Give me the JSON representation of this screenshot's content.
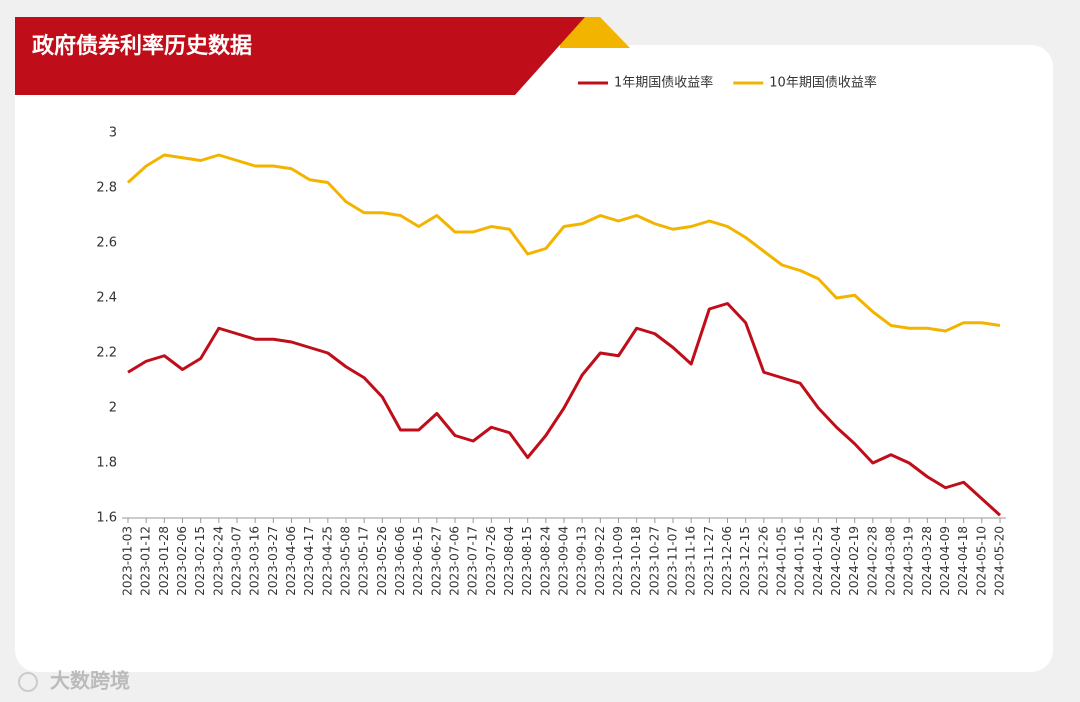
{
  "chart_data": {
    "type": "line",
    "title": "政府债券利率历史数据",
    "categories": [
      "2023-01-03",
      "2023-01-12",
      "2023-01-28",
      "2023-02-06",
      "2023-02-15",
      "2023-02-24",
      "2023-03-07",
      "2023-03-16",
      "2023-03-27",
      "2023-04-06",
      "2023-04-17",
      "2023-04-25",
      "2023-05-08",
      "2023-05-17",
      "2023-05-26",
      "2023-06-06",
      "2023-06-15",
      "2023-06-27",
      "2023-07-06",
      "2023-07-17",
      "2023-07-26",
      "2023-08-04",
      "2023-08-15",
      "2023-08-24",
      "2023-09-04",
      "2023-09-13",
      "2023-09-22",
      "2023-10-09",
      "2023-10-18",
      "2023-10-27",
      "2023-11-07",
      "2023-11-16",
      "2023-11-27",
      "2023-12-06",
      "2023-12-15",
      "2023-12-26",
      "2024-01-05",
      "2024-01-16",
      "2024-01-25",
      "2024-02-04",
      "2024-02-19",
      "2024-02-28",
      "2024-03-08",
      "2024-03-19",
      "2024-03-28",
      "2024-04-09",
      "2024-04-18",
      "2024-05-10",
      "2024-05-20"
    ],
    "series": [
      {
        "name": "1年期国债收益率",
        "color": "#c00d1a",
        "values": [
          2.13,
          2.17,
          2.19,
          2.14,
          2.18,
          2.29,
          2.27,
          2.25,
          2.25,
          2.24,
          2.22,
          2.2,
          2.15,
          2.11,
          2.04,
          1.92,
          1.92,
          1.98,
          1.9,
          1.88,
          1.93,
          1.91,
          1.82,
          1.9,
          2.0,
          2.12,
          2.2,
          2.19,
          2.29,
          2.27,
          2.22,
          2.16,
          2.36,
          2.38,
          2.31,
          2.13,
          2.11,
          2.09,
          2.0,
          1.93,
          1.87,
          1.8,
          1.83,
          1.8,
          1.75,
          1.71,
          1.73,
          1.67,
          1.61
        ]
      },
      {
        "name": "10年期国债收益率",
        "color": "#f3b400",
        "values": [
          2.82,
          2.88,
          2.92,
          2.91,
          2.9,
          2.92,
          2.9,
          2.88,
          2.88,
          2.87,
          2.83,
          2.82,
          2.75,
          2.71,
          2.71,
          2.7,
          2.66,
          2.7,
          2.64,
          2.64,
          2.66,
          2.65,
          2.56,
          2.58,
          2.66,
          2.67,
          2.7,
          2.68,
          2.7,
          2.67,
          2.65,
          2.66,
          2.68,
          2.66,
          2.62,
          2.57,
          2.52,
          2.5,
          2.47,
          2.4,
          2.41,
          2.35,
          2.3,
          2.29,
          2.29,
          2.28,
          2.31,
          2.31,
          2.3
        ]
      }
    ],
    "ylim": [
      1.6,
      3
    ],
    "yticks": [
      1.6,
      1.8,
      2,
      2.2,
      2.4,
      2.6,
      2.8,
      3
    ],
    "grid": false,
    "legend": "top-right"
  },
  "watermark": "大数跨境"
}
